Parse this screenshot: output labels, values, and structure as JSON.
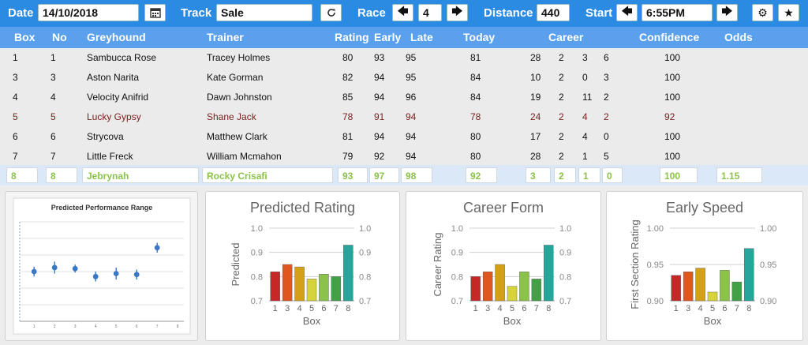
{
  "toolbar": {
    "date_label": "Date",
    "date_value": "14/10/2018",
    "track_label": "Track",
    "track_value": "Sale",
    "race_label": "Race",
    "race_value": "4",
    "distance_label": "Distance",
    "distance_value": "440",
    "start_label": "Start",
    "start_value": "6:55PM",
    "icons": [
      "calendar-icon",
      "refresh-icon",
      "arrow-left-icon",
      "arrow-right-icon",
      "gear-icon",
      "star-icon"
    ]
  },
  "table": {
    "headers": {
      "box": "Box",
      "no": "No",
      "greyhound": "Greyhound",
      "trainer": "Trainer",
      "rating": "Rating",
      "early": "Early",
      "late": "Late",
      "today": "Today",
      "career": "Career",
      "confidence": "Confidence",
      "odds": "Odds"
    },
    "rows": [
      {
        "box": "1",
        "no": "1",
        "greyhound": "Sambucca Rose",
        "trainer": "Tracey Holmes",
        "rating": "80",
        "early": "93",
        "late": "95",
        "today": "81",
        "c1": "28",
        "c2": "2",
        "c3": "3",
        "c4": "6",
        "confidence": "100",
        "odds": "",
        "highlight": false
      },
      {
        "box": "3",
        "no": "3",
        "greyhound": "Aston Narita",
        "trainer": "Kate Gorman",
        "rating": "82",
        "early": "94",
        "late": "95",
        "today": "84",
        "c1": "10",
        "c2": "2",
        "c3": "0",
        "c4": "3",
        "confidence": "100",
        "odds": "",
        "highlight": false
      },
      {
        "box": "4",
        "no": "4",
        "greyhound": "Velocity Anifrid",
        "trainer": "Dawn Johnston",
        "rating": "85",
        "early": "94",
        "late": "96",
        "today": "84",
        "c1": "19",
        "c2": "2",
        "c3": "11",
        "c4": "2",
        "confidence": "100",
        "odds": "",
        "highlight": false
      },
      {
        "box": "5",
        "no": "5",
        "greyhound": "Lucky Gypsy",
        "trainer": "Shane Jack",
        "rating": "78",
        "early": "91",
        "late": "94",
        "today": "78",
        "c1": "24",
        "c2": "2",
        "c3": "4",
        "c4": "2",
        "confidence": "92",
        "odds": "",
        "highlight": true
      },
      {
        "box": "6",
        "no": "6",
        "greyhound": "Strycova",
        "trainer": "Matthew Clark",
        "rating": "81",
        "early": "94",
        "late": "94",
        "today": "80",
        "c1": "17",
        "c2": "2",
        "c3": "4",
        "c4": "0",
        "confidence": "100",
        "odds": "",
        "highlight": false
      },
      {
        "box": "7",
        "no": "7",
        "greyhound": "Little Freck",
        "trainer": "William Mcmahon",
        "rating": "79",
        "early": "92",
        "late": "94",
        "today": "80",
        "c1": "28",
        "c2": "2",
        "c3": "1",
        "c4": "5",
        "confidence": "100",
        "odds": "",
        "highlight": false
      }
    ],
    "selected": {
      "box": "8",
      "no": "8",
      "greyhound": "Jebrynah",
      "trainer": "Rocky Crisafi",
      "rating": "93",
      "early": "97",
      "late": "98",
      "today": "92",
      "c1": "3",
      "c2": "2",
      "c3": "1",
      "c4": "0",
      "confidence": "100",
      "odds": "1.15"
    }
  },
  "chart_data": [
    {
      "type": "scatter",
      "title": "Predicted Performance Range",
      "x": [
        1,
        2,
        3,
        4,
        5,
        6,
        7
      ],
      "y": [
        0.5,
        0.54,
        0.53,
        0.45,
        0.48,
        0.47,
        0.74
      ],
      "err": [
        0.05,
        0.06,
        0.04,
        0.05,
        0.06,
        0.05,
        0.05
      ],
      "xlim": [
        0,
        8
      ],
      "ylim": [
        0,
        1
      ],
      "x_ticks": [
        "1",
        "2",
        "3",
        "4",
        "5",
        "6",
        "7",
        "8"
      ],
      "grid": true
    },
    {
      "type": "bar",
      "title": "Predicted Rating",
      "categories": [
        "1",
        "3",
        "4",
        "5",
        "6",
        "7",
        "8"
      ],
      "values": [
        0.82,
        0.85,
        0.84,
        0.79,
        0.81,
        0.8,
        0.93
      ],
      "xlabel": "Box",
      "ylabel": "Predicted",
      "ylim": [
        0.7,
        1.0
      ],
      "y_ticks": [
        "0.7",
        "0.8",
        "0.9",
        "1.0"
      ]
    },
    {
      "type": "bar",
      "title": "Career Form",
      "categories": [
        "1",
        "3",
        "4",
        "5",
        "6",
        "7",
        "8"
      ],
      "values": [
        0.8,
        0.82,
        0.85,
        0.76,
        0.82,
        0.79,
        0.93
      ],
      "xlabel": "Box",
      "ylabel": "Career Rating",
      "ylim": [
        0.7,
        1.0
      ],
      "y_ticks": [
        "0.7",
        "0.8",
        "0.9",
        "1.0"
      ]
    },
    {
      "type": "bar",
      "title": "Early Speed",
      "categories": [
        "1",
        "3",
        "4",
        "5",
        "6",
        "7",
        "8"
      ],
      "values": [
        0.935,
        0.94,
        0.945,
        0.912,
        0.942,
        0.926,
        0.972
      ],
      "xlabel": "Box",
      "ylabel": "First Section Rating",
      "ylim": [
        0.9,
        1.0
      ],
      "y_ticks": [
        "0.90",
        "0.95",
        "1.00"
      ]
    }
  ],
  "bar_colors": [
    "#c62828",
    "#e0561f",
    "#d4a017",
    "#d7d33a",
    "#8bc34a",
    "#43a047",
    "#26a69a"
  ]
}
